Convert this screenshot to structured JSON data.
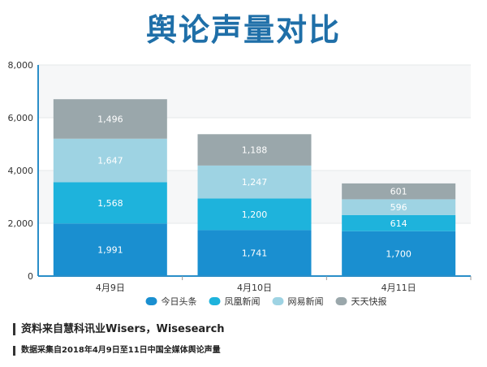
{
  "title": "舆论声量对比",
  "source": "资料来自慧科讯业Wisers，Wisesearch",
  "note": "数据采集自2018年4月9日至11日中国全媒体舆论声量",
  "chart_data": {
    "type": "bar",
    "stacked": true,
    "categories": [
      "4月9日",
      "4月10日",
      "4月11日"
    ],
    "series": [
      {
        "name": "今日头条",
        "values": [
          1991,
          1741,
          1700
        ],
        "color": "#1a8fd0"
      },
      {
        "name": "凤凰新闻",
        "values": [
          1568,
          1200,
          614
        ],
        "color": "#1eb3dc"
      },
      {
        "name": "网易新闻",
        "values": [
          1647,
          1247,
          596
        ],
        "color": "#9ed3e3"
      },
      {
        "name": "天天快报",
        "values": [
          1496,
          1188,
          601
        ],
        "color": "#9aa7ab"
      }
    ],
    "ylim": [
      0,
      8000
    ],
    "yticks": [
      "0",
      "2,000",
      "4,000",
      "6,000",
      "8,000"
    ],
    "grid": true,
    "legend_position": "bottom",
    "label_color": "#ffffff",
    "axis_color": "#2a8ec8"
  }
}
